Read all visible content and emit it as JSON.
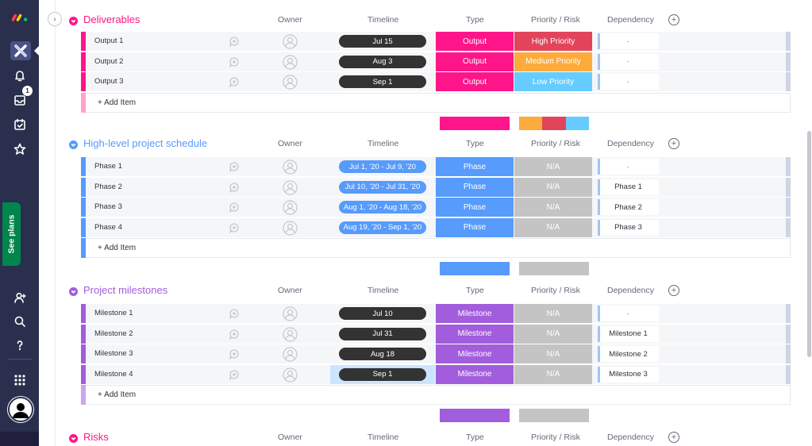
{
  "sidebar": {
    "see_plans_label": "See plans",
    "inbox_badge": "1",
    "icons": [
      "monday-logo-icon",
      "workspace-icon",
      "bell-icon",
      "inbox-icon",
      "my-work-icon",
      "favorites-star-icon",
      "invite-members-icon",
      "search-icon",
      "help-icon",
      "apps-grid-icon",
      "avatar-icon"
    ]
  },
  "columns": {
    "owner": "Owner",
    "timeline": "Timeline",
    "type": "Type",
    "priority": "Priority / Risk",
    "dependency": "Dependency"
  },
  "add_item_label": "+ Add Item",
  "colors": {
    "sidebar_bg": "#292f4c",
    "deliverables": "#ff158a",
    "schedule": "#579bfc",
    "milestones": "#a25ddc",
    "high_priority": "#e2445c",
    "medium_priority": "#fdab3d",
    "low_priority": "#66ccff",
    "na": "#c4c4c4",
    "timeline_dark": "#333333"
  },
  "groups": {
    "deliverables": {
      "title": "Deliverables",
      "rows": [
        {
          "name": "Output 1",
          "timeline": "Jul 15",
          "type": "Output",
          "priority": "High Priority",
          "dependency": "-"
        },
        {
          "name": "Output 2",
          "timeline": "Aug 3",
          "type": "Output",
          "priority": "Medium Priority",
          "dependency": "-"
        },
        {
          "name": "Output 3",
          "timeline": "Sep 1",
          "type": "Output",
          "priority": "Low Priority",
          "dependency": "-"
        }
      ]
    },
    "schedule": {
      "title": "High-level project schedule",
      "rows": [
        {
          "name": "Phase 1",
          "timeline": "Jul 1, '20 - Jul 9, '20",
          "type": "Phase",
          "priority": "N/A",
          "dependency": "-"
        },
        {
          "name": "Phase 2",
          "timeline": "Jul 10, '20 - Jul 31, '20",
          "type": "Phase",
          "priority": "N/A",
          "dependency": "Phase 1"
        },
        {
          "name": "Phase 3",
          "timeline": "Aug 1, '20 - Aug 18, '20",
          "type": "Phase",
          "priority": "N/A",
          "dependency": "Phase 2"
        },
        {
          "name": "Phase 4",
          "timeline": "Aug 19, '20 - Sep 1, '20",
          "type": "Phase",
          "priority": "N/A",
          "dependency": "Phase 3"
        }
      ]
    },
    "milestones": {
      "title": "Project milestones",
      "rows": [
        {
          "name": "Milestone 1",
          "timeline": "Jul 10",
          "type": "Milestone",
          "priority": "N/A",
          "dependency": "-"
        },
        {
          "name": "Milestone 2",
          "timeline": "Jul 31",
          "type": "Milestone",
          "priority": "N/A",
          "dependency": "Milestone 1"
        },
        {
          "name": "Milestone 3",
          "timeline": "Aug 18",
          "type": "Milestone",
          "priority": "N/A",
          "dependency": "Milestone 2"
        },
        {
          "name": "Milestone 4",
          "timeline": "Sep 1",
          "type": "Milestone",
          "priority": "N/A",
          "dependency": "Milestone 3"
        }
      ]
    },
    "risks": {
      "title": "Risks"
    }
  }
}
